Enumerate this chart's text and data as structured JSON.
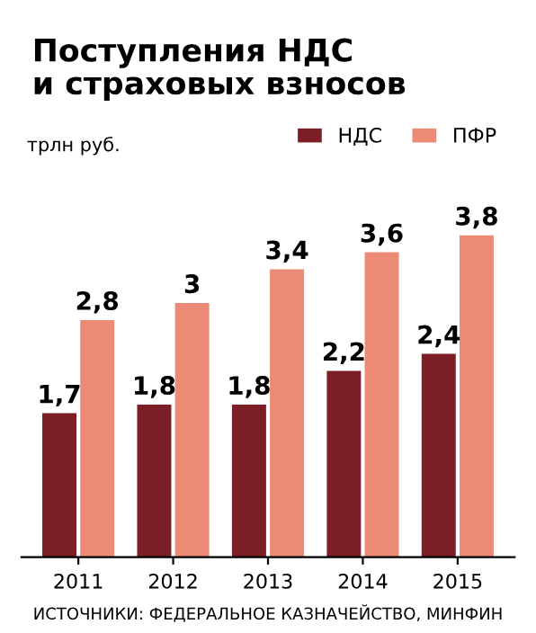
{
  "chart_data": {
    "type": "bar",
    "title": "Поступления НДС\nи страховых взносов",
    "ylabel": "трлн руб.",
    "categories": [
      "2011",
      "2012",
      "2013",
      "2014",
      "2015"
    ],
    "series": [
      {
        "name": "НДС",
        "color": "#7b1e26",
        "values": [
          1.7,
          1.8,
          1.8,
          2.2,
          2.4
        ],
        "value_labels": [
          "1,7",
          "1,8",
          "1,8",
          "2,2",
          "2,4"
        ]
      },
      {
        "name": "ПФР",
        "color": "#ec8a76",
        "values": [
          2.8,
          3,
          3.4,
          3.6,
          3.8
        ],
        "value_labels": [
          "2,8",
          "3",
          "3,4",
          "3,6",
          "3,8"
        ]
      }
    ],
    "legend": "top right",
    "grid": false,
    "annotations": [
      "ИСТОЧНИКИ: ФЕДЕРАЛЬНОЕ КАЗНАЧЕЙСТВО, МИНФИН"
    ]
  }
}
